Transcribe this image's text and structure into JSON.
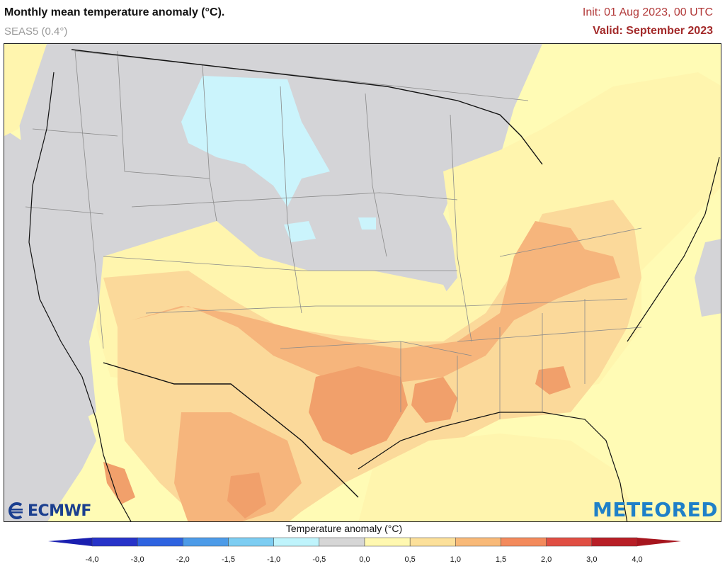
{
  "header": {
    "title": "Monthly mean temperature anomaly (°C).",
    "model": "SEAS5 (0.4°)",
    "init": "Init: 01 Aug 2023, 00 UTC",
    "valid": "Valid: September 2023"
  },
  "logos": {
    "left": "ECMWF",
    "right": "METEORED"
  },
  "legend": {
    "title": "Temperature anomaly (°C)",
    "labels": [
      "-4,0",
      "-3,0",
      "-2,0",
      "-1,5",
      "-1,0",
      "-0,5",
      "0,0",
      "0,5",
      "1,0",
      "1,5",
      "2,0",
      "3,0",
      "4,0"
    ],
    "colors": [
      "#2733c9",
      "#2e63e0",
      "#4d9be8",
      "#7dcdf2",
      "#bff4fc",
      "#d6d6d6",
      "#d6d6d6",
      "#fff8b0",
      "#fce09a",
      "#f8b978",
      "#f38a5c",
      "#e04e43",
      "#b81e26"
    ],
    "low_arrow_color": "#1a1fb0",
    "high_arrow_color": "#a6151e"
  },
  "map_colors": {
    "ocean": "#fffbb5",
    "gray": "#d3d3d6",
    "lightblue": "#cbf4fc",
    "yellow": "#fff5ae",
    "lightorange": "#fbd99a",
    "orange": "#f6b57c",
    "darkorange": "#f1a06b"
  }
}
